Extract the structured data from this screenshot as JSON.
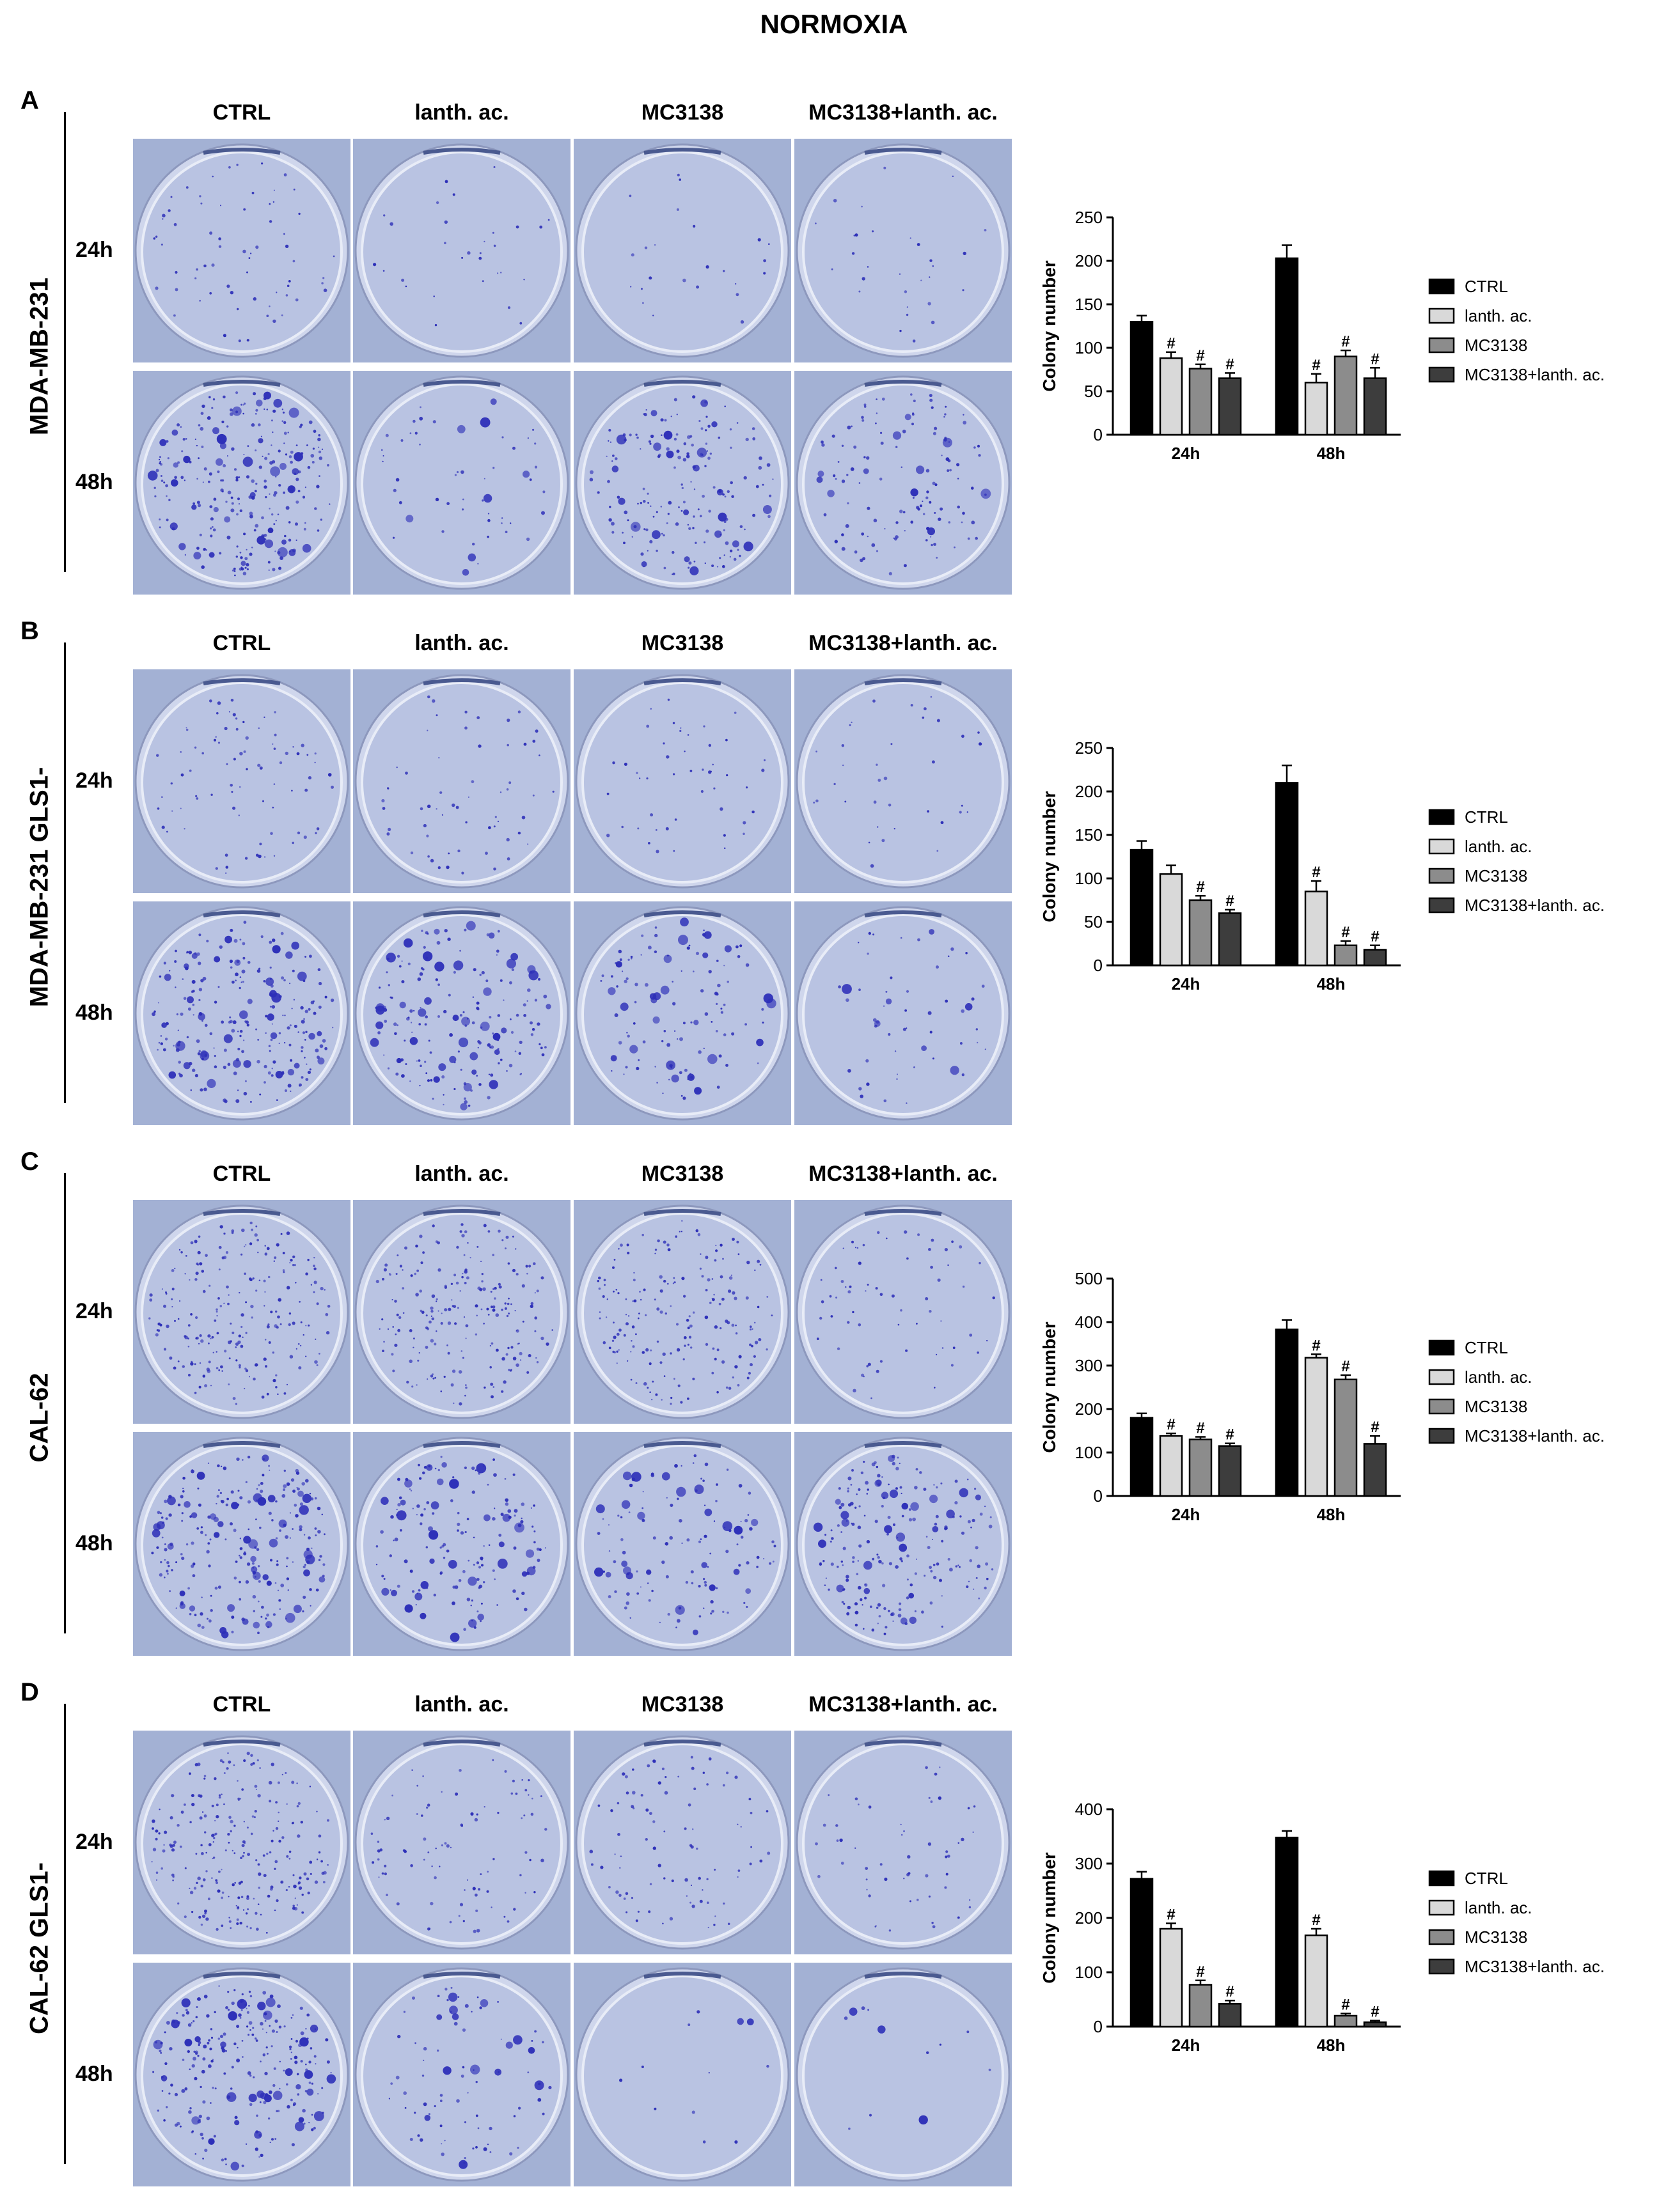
{
  "figure": {
    "title": "NORMOXIA",
    "columns": [
      "CTRL",
      "lanth. ac.",
      "MC3138",
      "MC3138+lanth. ac."
    ],
    "rows": [
      "24h",
      "48h"
    ]
  },
  "panels": [
    {
      "letter": "A",
      "cell_line": "MDA-MB-231",
      "densities": [
        [
          22,
          10,
          8,
          10
        ],
        [
          90,
          18,
          62,
          42
        ]
      ]
    },
    {
      "letter": "B",
      "cell_line": "MDA-MB-231 GLS1-",
      "densities": [
        [
          28,
          20,
          16,
          12
        ],
        [
          80,
          62,
          40,
          18
        ]
      ]
    },
    {
      "letter": "C",
      "cell_line": "CAL-62",
      "densities": [
        [
          75,
          70,
          62,
          22
        ],
        [
          85,
          55,
          42,
          70
        ]
      ]
    },
    {
      "letter": "D",
      "cell_line": "CAL-62 GLS1-",
      "densities": [
        [
          80,
          30,
          30,
          18
        ],
        [
          85,
          28,
          4,
          4
        ]
      ]
    }
  ],
  "legend_labels": [
    "CTRL",
    "lanth. ac.",
    "MC3138",
    "MC3138+lanth. ac."
  ],
  "colors": {
    "CTRL": "#000000",
    "lanth. ac.": "#d9d9d9",
    "MC3138": "#8c8c8c",
    "MC3138+lanth. ac.": "#3d3d3d",
    "plate_bg": "#a7b4d6",
    "colony": "#2d2fb8"
  },
  "chart_data": [
    {
      "type": "bar",
      "categories": [
        "24h",
        "48h"
      ],
      "ylabel": "Colony number",
      "ylim": [
        0,
        250
      ],
      "yticks": [
        0,
        50,
        100,
        150,
        200,
        250
      ],
      "legend": "right",
      "series": [
        {
          "name": "CTRL",
          "values": [
            130,
            203
          ],
          "err": [
            7,
            15
          ],
          "sig": [
            false,
            false
          ]
        },
        {
          "name": "lanth. ac.",
          "values": [
            88,
            60
          ],
          "err": [
            7,
            10
          ],
          "sig": [
            true,
            true
          ]
        },
        {
          "name": "MC3138",
          "values": [
            76,
            90
          ],
          "err": [
            5,
            7
          ],
          "sig": [
            true,
            true
          ]
        },
        {
          "name": "MC3138+lanth. ac.",
          "values": [
            65,
            65
          ],
          "err": [
            6,
            12
          ],
          "sig": [
            true,
            true
          ]
        }
      ],
      "sig_symbol": "#"
    },
    {
      "type": "bar",
      "categories": [
        "24h",
        "48h"
      ],
      "ylabel": "Colony number",
      "ylim": [
        0,
        250
      ],
      "yticks": [
        0,
        50,
        100,
        150,
        200,
        250
      ],
      "legend": "right",
      "series": [
        {
          "name": "CTRL",
          "values": [
            133,
            210
          ],
          "err": [
            10,
            20
          ],
          "sig": [
            false,
            false
          ]
        },
        {
          "name": "lanth. ac.",
          "values": [
            105,
            85
          ],
          "err": [
            10,
            12
          ],
          "sig": [
            false,
            true
          ]
        },
        {
          "name": "MC3138",
          "values": [
            75,
            23
          ],
          "err": [
            5,
            5
          ],
          "sig": [
            true,
            true
          ]
        },
        {
          "name": "MC3138+lanth. ac.",
          "values": [
            60,
            18
          ],
          "err": [
            4,
            5
          ],
          "sig": [
            true,
            true
          ]
        }
      ],
      "sig_symbol": "#"
    },
    {
      "type": "bar",
      "categories": [
        "24h",
        "48h"
      ],
      "ylabel": "Colony number",
      "ylim": [
        0,
        500
      ],
      "yticks": [
        0,
        100,
        200,
        300,
        400,
        500
      ],
      "legend": "right",
      "series": [
        {
          "name": "CTRL",
          "values": [
            180,
            383
          ],
          "err": [
            10,
            22
          ],
          "sig": [
            false,
            false
          ]
        },
        {
          "name": "lanth. ac.",
          "values": [
            138,
            318
          ],
          "err": [
            6,
            8
          ],
          "sig": [
            true,
            true
          ]
        },
        {
          "name": "MC3138",
          "values": [
            130,
            268
          ],
          "err": [
            6,
            10
          ],
          "sig": [
            true,
            true
          ]
        },
        {
          "name": "MC3138+lanth. ac.",
          "values": [
            115,
            120
          ],
          "err": [
            6,
            18
          ],
          "sig": [
            true,
            true
          ]
        }
      ],
      "sig_symbol": "#"
    },
    {
      "type": "bar",
      "categories": [
        "24h",
        "48h"
      ],
      "ylabel": "Colony number",
      "ylim": [
        0,
        400
      ],
      "yticks": [
        0,
        100,
        200,
        300,
        400
      ],
      "legend": "right",
      "series": [
        {
          "name": "CTRL",
          "values": [
            272,
            348
          ],
          "err": [
            13,
            12
          ],
          "sig": [
            false,
            false
          ]
        },
        {
          "name": "lanth. ac.",
          "values": [
            180,
            168
          ],
          "err": [
            10,
            12
          ],
          "sig": [
            true,
            true
          ]
        },
        {
          "name": "MC3138",
          "values": [
            77,
            20
          ],
          "err": [
            8,
            4
          ],
          "sig": [
            true,
            true
          ]
        },
        {
          "name": "MC3138+lanth. ac.",
          "values": [
            42,
            8
          ],
          "err": [
            6,
            3
          ],
          "sig": [
            true,
            true
          ]
        }
      ],
      "sig_symbol": "#"
    }
  ]
}
